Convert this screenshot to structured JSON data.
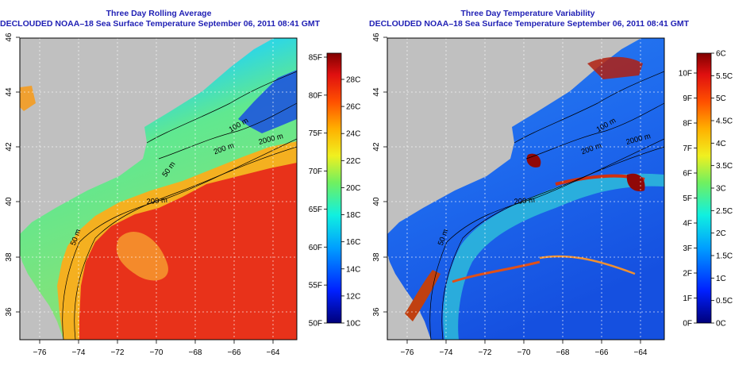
{
  "left_panel": {
    "title_line1": "Three Day Rolling Average",
    "title_line2": "DECLOUDED NOAA–18 Sea Surface Temperature September 06, 2011 08:41 GMT",
    "lat_ticks": [
      "36",
      "38",
      "40",
      "42",
      "44",
      "46"
    ],
    "lon_ticks": [
      "−76",
      "−74",
      "−72",
      "−70",
      "−68",
      "−66",
      "−64"
    ],
    "colorbar_f": [
      "50F",
      "55F",
      "60F",
      "65F",
      "70F",
      "75F",
      "80F",
      "85F"
    ],
    "colorbar_c": [
      "10C",
      "12C",
      "14C",
      "16C",
      "18C",
      "20C",
      "22C",
      "24C",
      "26C",
      "28C"
    ],
    "contours": [
      "100 m",
      "200 m",
      "2000 m",
      "200 m",
      "50 m",
      "50 m"
    ]
  },
  "right_panel": {
    "title_line1": "Three Day Temperature Variability",
    "title_line2": "DECLOUDED NOAA–18 Sea Surface Temperature September 06, 2011 08:41 GMT",
    "lat_ticks": [
      "36",
      "38",
      "40",
      "42",
      "44",
      "46"
    ],
    "lon_ticks": [
      "−76",
      "−74",
      "−72",
      "−70",
      "−68",
      "−66",
      "−64"
    ],
    "colorbar_f": [
      "0F",
      "1F",
      "2F",
      "3F",
      "4F",
      "5F",
      "6F",
      "7F",
      "8F",
      "9F",
      "10F"
    ],
    "colorbar_c": [
      "0C",
      "0.5C",
      "1C",
      "1.5C",
      "2C",
      "2.5C",
      "3C",
      "3.5C",
      "4C",
      "4.5C",
      "5C",
      "5.5C",
      "6C"
    ],
    "contours": [
      "100 m",
      "200 m",
      "2000 m",
      "200 m",
      "50 m"
    ]
  },
  "colors": {
    "land": "#c0c0c0",
    "title": "#1f1fb4"
  }
}
